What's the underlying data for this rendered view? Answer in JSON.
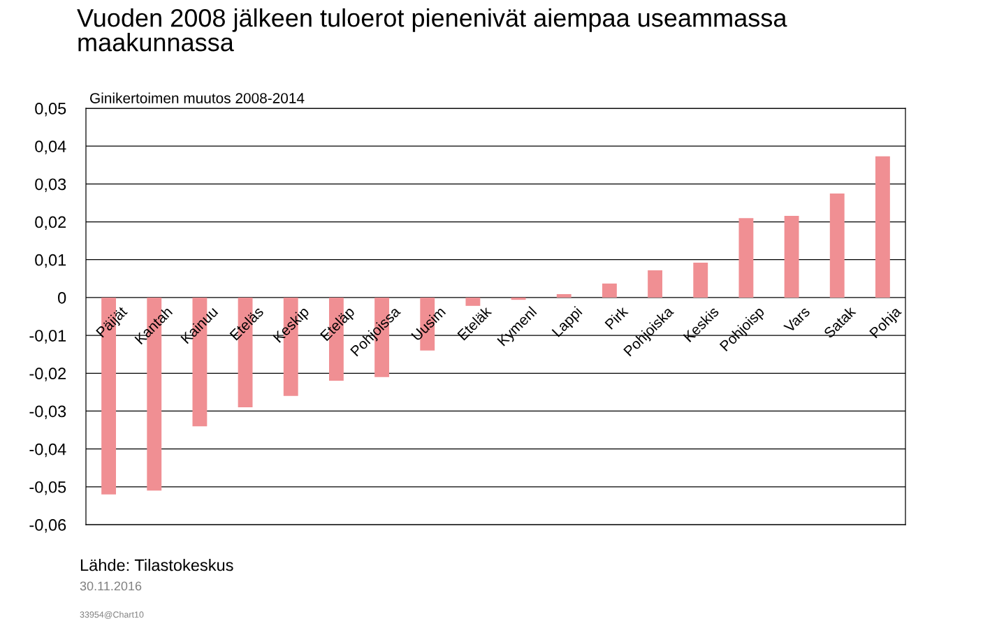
{
  "chart_data": {
    "type": "bar",
    "title": "Vuoden 2008 jälkeen tuloerot pienenivät aiempaa useammassa\nmaakunnassa",
    "ylabel": "Ginikertoimen muutos 2008-2014",
    "categories": [
      "Päijät",
      "Kantah",
      "Kainuu",
      "Eteläs",
      "Keskip",
      "Eteläp",
      "Pohjoissa",
      "Uusim",
      "Eteläk",
      "Kymenl",
      "Lappi",
      "Pirk",
      "Pohjoiska",
      "Keskis",
      "Pohjoisp",
      "Vars",
      "Satak",
      "Pohja"
    ],
    "values": [
      -0.052,
      -0.051,
      -0.034,
      -0.029,
      -0.026,
      -0.022,
      -0.021,
      -0.014,
      -0.0022,
      -0.0006,
      0.0009,
      0.0037,
      0.0072,
      0.0092,
      0.021,
      0.0216,
      0.0275,
      0.0373
    ],
    "color": "#f08f93",
    "ylim": [
      -0.06,
      0.05
    ],
    "yticks": [
      {
        "value": -0.06,
        "label": "-0,06"
      },
      {
        "value": -0.05,
        "label": "-0,05"
      },
      {
        "value": -0.04,
        "label": "-0,04"
      },
      {
        "value": -0.03,
        "label": "-0,03"
      },
      {
        "value": -0.02,
        "label": "-0,02"
      },
      {
        "value": -0.01,
        "label": "-0,01"
      },
      {
        "value": 0,
        "label": "0"
      },
      {
        "value": 0.01,
        "label": "0,01"
      },
      {
        "value": 0.02,
        "label": "0,02"
      },
      {
        "value": 0.03,
        "label": "0,03"
      },
      {
        "value": 0.04,
        "label": "0,04"
      },
      {
        "value": 0.05,
        "label": "0,05"
      }
    ],
    "grid": "y",
    "annotations": [
      "Lähde: Tilastokeskus",
      "30.11.2016",
      "33954@Chart10"
    ]
  }
}
